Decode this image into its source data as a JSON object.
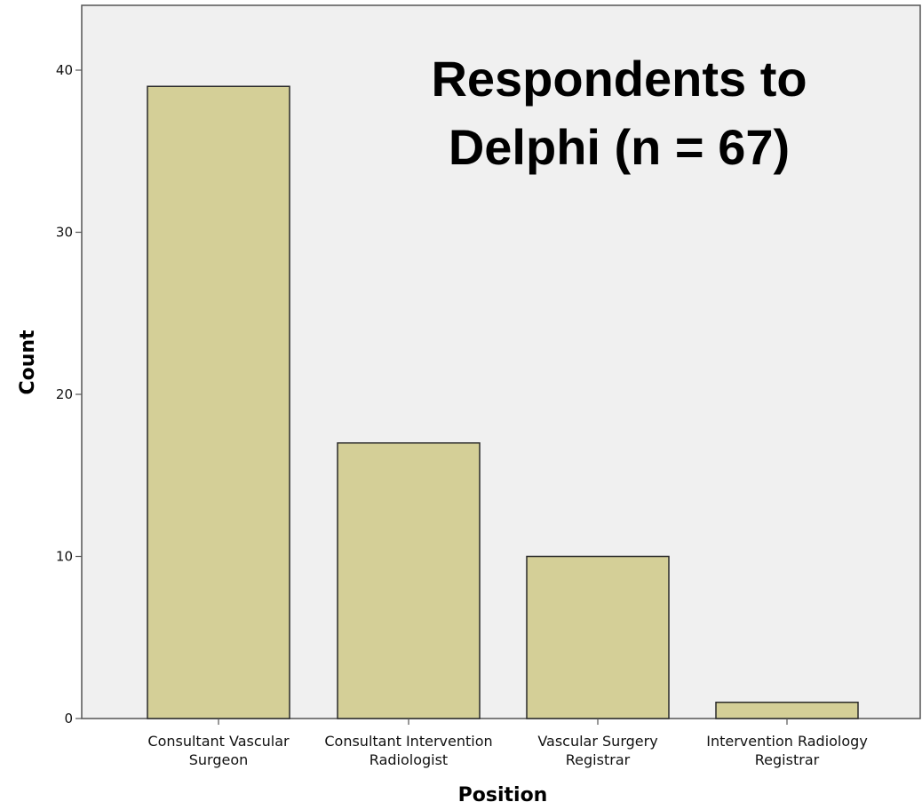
{
  "chart_data": {
    "type": "bar",
    "title": [
      "Respondents to",
      "Delphi (n = 67)"
    ],
    "xlabel": "Position",
    "ylabel": "Count",
    "categories": [
      [
        "Consultant Vascular",
        "Surgeon"
      ],
      [
        "Consultant Intervention",
        "Radiologist"
      ],
      [
        "Vascular Surgery",
        "Registrar"
      ],
      [
        "Intervention Radiology",
        "Registrar"
      ]
    ],
    "values": [
      39,
      17,
      10,
      1
    ],
    "ylim": [
      0,
      44
    ],
    "yticks": [
      0,
      10,
      20,
      30,
      40
    ],
    "grid": false,
    "colors": {
      "bar_fill": "#d4cf97",
      "bar_stroke": "#2a2a2a",
      "plot_background": "#f0f0f0",
      "axis": "#555555"
    }
  }
}
